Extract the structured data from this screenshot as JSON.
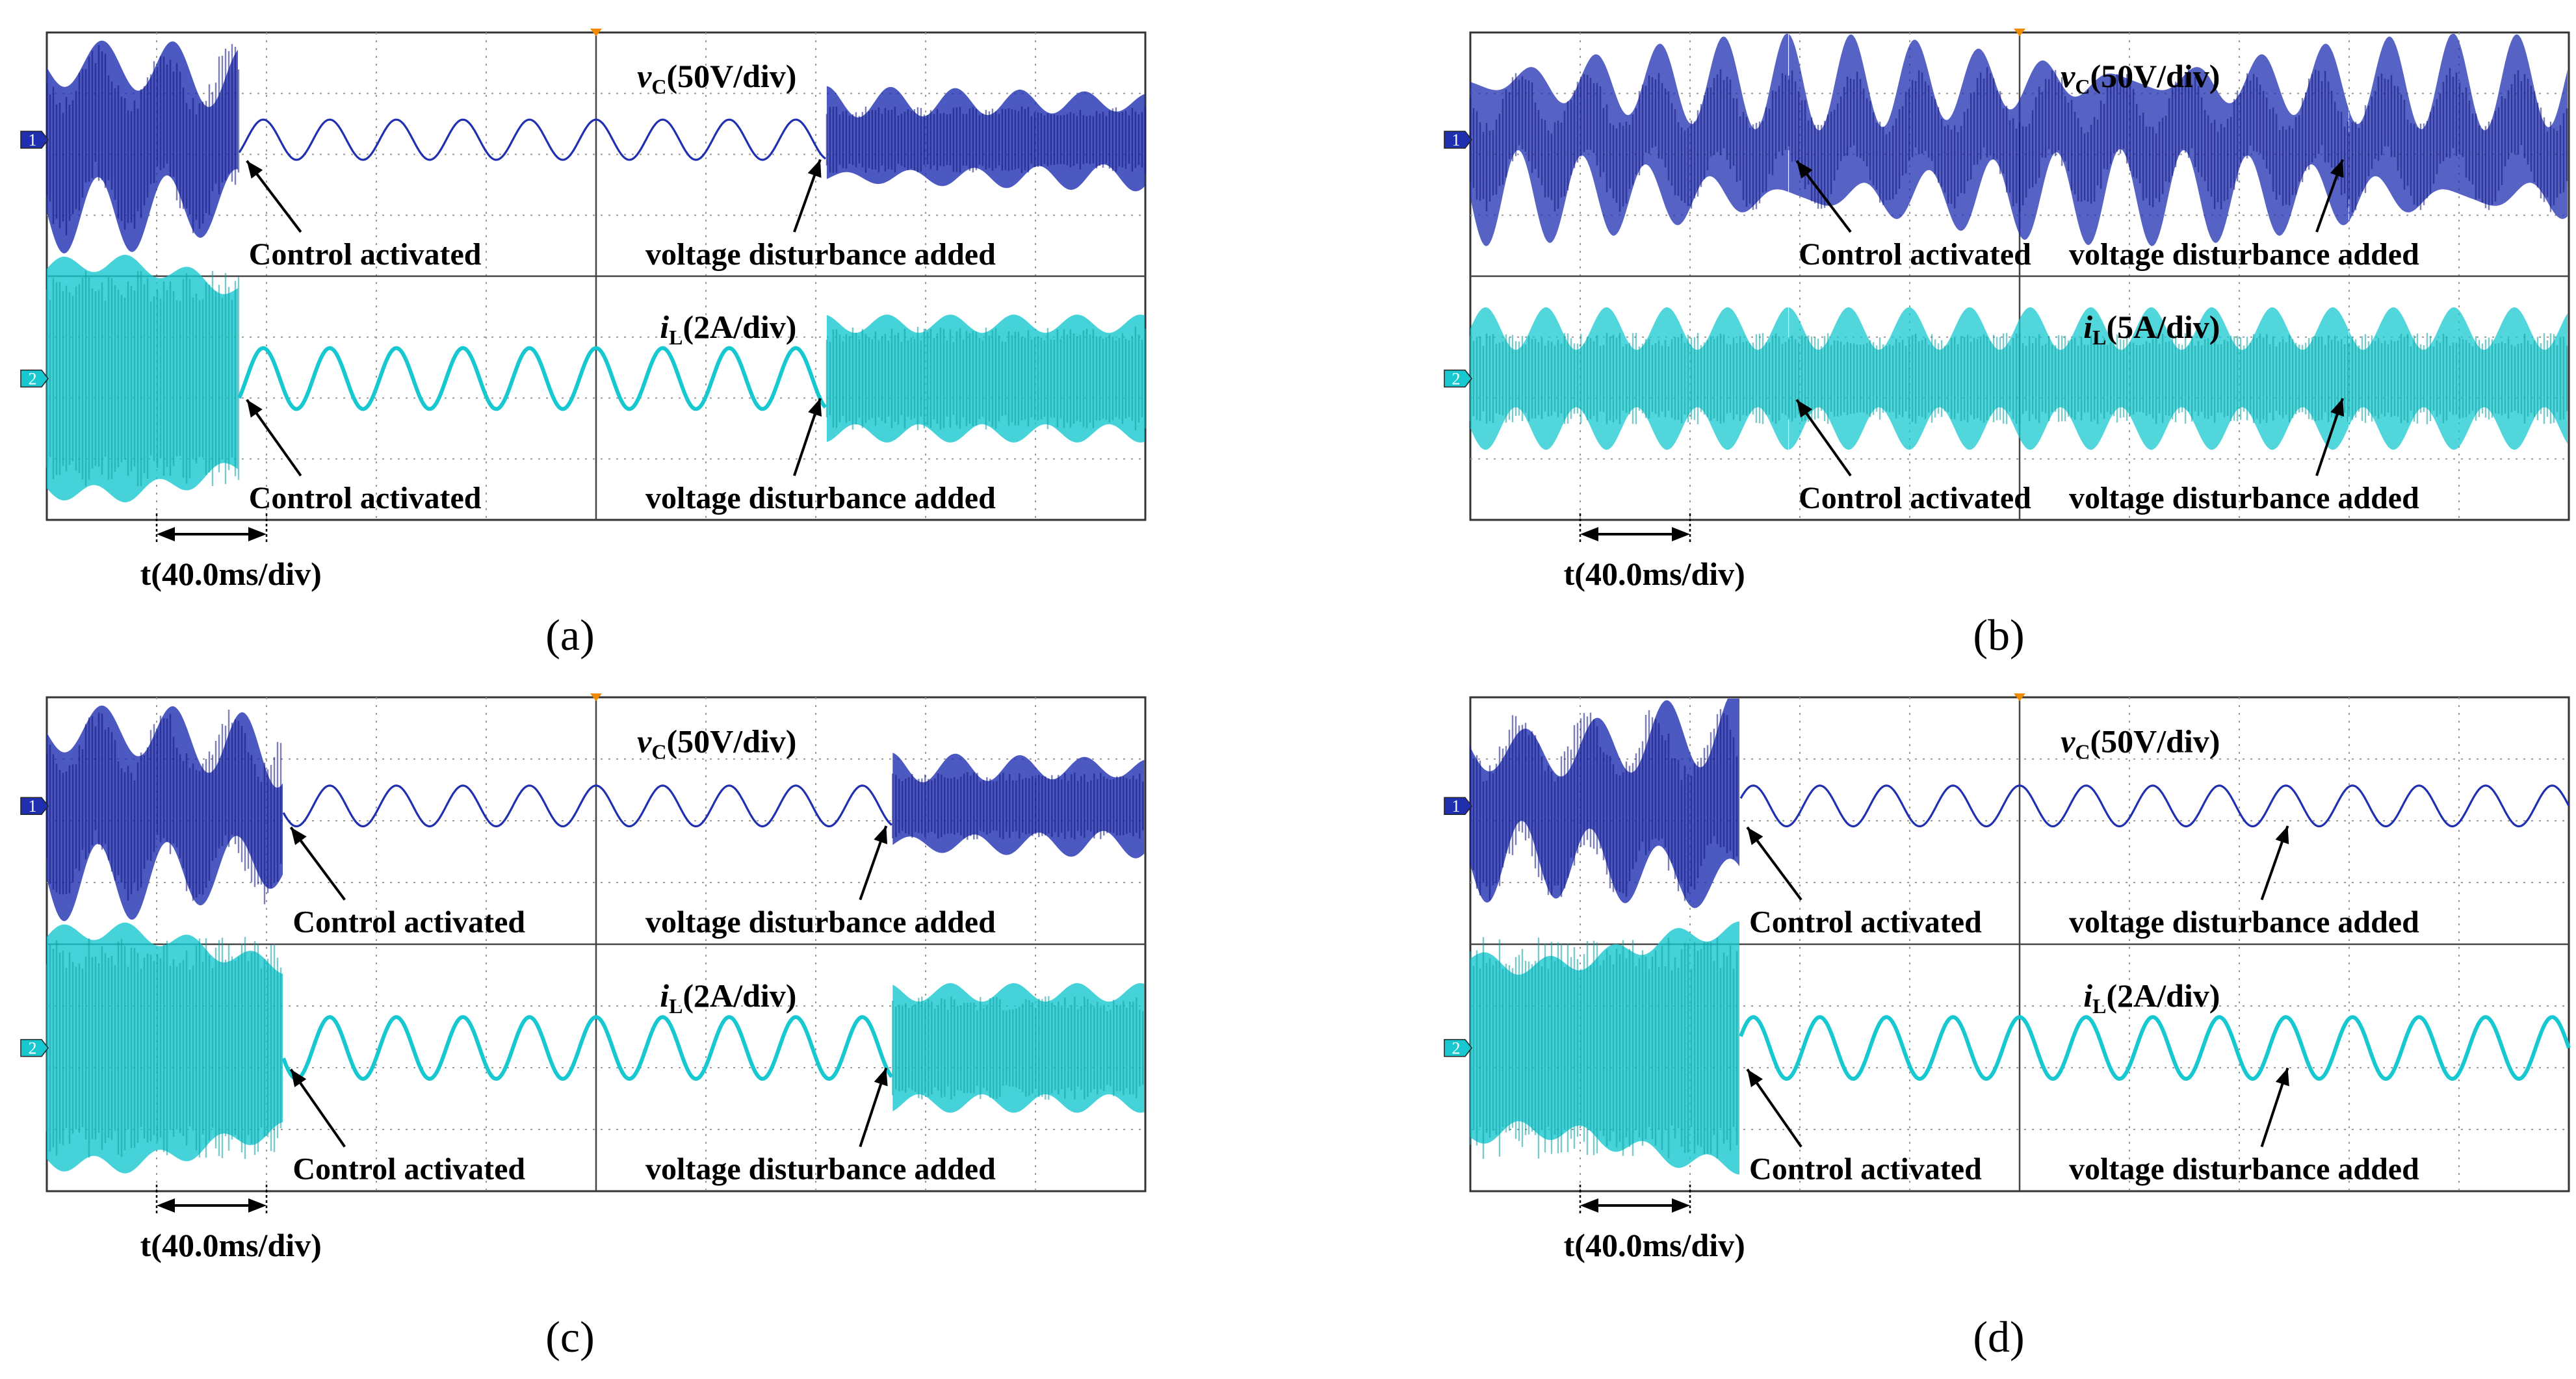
{
  "chart_data": [
    {
      "type": "line",
      "panel_label": "(a)",
      "time_scale": "t(40.0ms/div)",
      "grid": true,
      "channels": [
        {
          "marker": "1",
          "color": "#1f2fb0",
          "scale": "vC(50V/div)",
          "symbol": "v",
          "subscript": "C",
          "unit": "(50V/div)",
          "before": "unstable",
          "after_control": "clean",
          "after_disturbance": "distorted",
          "annotations": [
            "Control activated",
            "voltage disturbance added"
          ]
        },
        {
          "marker": "2",
          "color": "#17c8d0",
          "scale": "iL(2A/div)",
          "symbol": "i",
          "subscript": "L",
          "unit": "(2A/div)",
          "before": "unstable",
          "after_control": "clean",
          "after_disturbance": "distorted",
          "annotations": [
            "Control activated",
            "voltage disturbance added"
          ]
        }
      ],
      "events": {
        "control_activated_div": 1.75,
        "disturbance_added_div": 7.1
      }
    },
    {
      "type": "line",
      "panel_label": "(b)",
      "time_scale": "t(40.0ms/div)",
      "grid": true,
      "channels": [
        {
          "marker": "1",
          "color": "#1f2fb0",
          "scale": "vC(50V/div)",
          "symbol": "v",
          "subscript": "C",
          "unit": "(50V/div)",
          "before": "noisy",
          "after_control": "noisy",
          "after_disturbance": "noisy",
          "annotations": [
            "Control activated",
            "voltage disturbance added"
          ]
        },
        {
          "marker": "2",
          "color": "#17c8d0",
          "scale": "iL(5A/div)",
          "symbol": "i",
          "subscript": "L",
          "unit": "(5A/div)",
          "before": "noisy",
          "after_control": "noisy",
          "after_disturbance": "noisy",
          "annotations": [
            "Control activated",
            "voltage disturbance added"
          ]
        }
      ],
      "events": {
        "control_activated_div": 2.9,
        "disturbance_added_div": 8.0
      }
    },
    {
      "type": "line",
      "panel_label": "(c)",
      "time_scale": "t(40.0ms/div)",
      "grid": true,
      "channels": [
        {
          "marker": "1",
          "color": "#1f2fb0",
          "scale": "vC(50V/div)",
          "symbol": "v",
          "subscript": "C",
          "unit": "(50V/div)",
          "before": "unstable",
          "after_control": "clean",
          "after_disturbance": "distorted",
          "annotations": [
            "Control activated",
            "voltage disturbance added"
          ]
        },
        {
          "marker": "2",
          "color": "#17c8d0",
          "scale": "iL(2A/div)",
          "symbol": "i",
          "subscript": "L",
          "unit": "(2A/div)",
          "before": "unstable",
          "after_control": "clean",
          "after_disturbance": "distorted",
          "annotations": [
            "Control activated",
            "voltage disturbance added"
          ]
        }
      ],
      "events": {
        "control_activated_div": 2.15,
        "disturbance_added_div": 7.7
      }
    },
    {
      "type": "line",
      "panel_label": "(d)",
      "time_scale": "t(40.0ms/div)",
      "grid": true,
      "channels": [
        {
          "marker": "1",
          "color": "#1f2fb0",
          "scale": "vC(50V/div)",
          "symbol": "v",
          "subscript": "C",
          "unit": "(50V/div)",
          "before": "unstable",
          "after_control": "clean",
          "after_disturbance": "clean",
          "annotations": [
            "Control activated",
            "voltage disturbance added"
          ]
        },
        {
          "marker": "2",
          "color": "#17c8d0",
          "scale": "iL(2A/div)",
          "symbol": "i",
          "subscript": "L",
          "unit": "(2A/div)",
          "before": "unstable",
          "after_control": "clean",
          "after_disturbance": "clean",
          "annotations": [
            "Control activated",
            "voltage disturbance added"
          ]
        }
      ],
      "events": {
        "control_activated_div": 2.45,
        "disturbance_added_div": 7.5
      }
    }
  ]
}
